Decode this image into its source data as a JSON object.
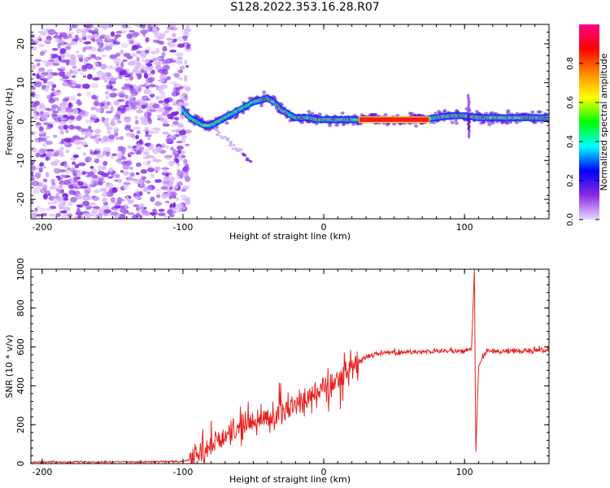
{
  "title": "S128.2022.353.16.28.R07",
  "chart_data": [
    {
      "type": "heatmap",
      "xlabel": "Height of straight line (km)",
      "ylabel": "Frequency (Hz)",
      "xlim": [
        -208,
        160
      ],
      "ylim": [
        -25,
        25
      ],
      "x_ticks": [
        -200,
        -100,
        0,
        100
      ],
      "y_ticks": [
        -20,
        -10,
        0,
        10,
        20
      ],
      "colorbar": {
        "label": "Normalized spectral amplitude",
        "range": [
          0,
          1
        ],
        "ticks": [
          0.0,
          0.2,
          0.4,
          0.6,
          0.8
        ],
        "tick_labels": [
          "0.0",
          "0.2",
          "0.4",
          "0.6",
          "0.8"
        ],
        "colormap": [
          "#e8d8ff",
          "#8a2be2",
          "#0000ff",
          "#00ffff",
          "#00ff00",
          "#ffff00",
          "#ff8800",
          "#ff0000",
          "#ff0088"
        ]
      },
      "noise_region_x": [
        -208,
        -100
      ],
      "ridge": {
        "x": [
          -100,
          -95,
          -90,
          -85,
          -80,
          -75,
          -70,
          -65,
          -60,
          -55,
          -50,
          -45,
          -40,
          -35,
          -30,
          -25,
          -20,
          -15,
          -10,
          -5,
          0,
          10,
          20,
          30,
          40,
          50,
          60,
          70,
          80,
          90,
          100,
          110,
          120,
          130,
          140,
          150,
          160
        ],
        "y": [
          3,
          1,
          0,
          -1,
          -1,
          0,
          1,
          2,
          3,
          4,
          5,
          5.5,
          6,
          5,
          3,
          2,
          1,
          1,
          1,
          0.5,
          0.5,
          0.5,
          0.5,
          0.5,
          0.5,
          0.5,
          0.5,
          0.5,
          1,
          1.5,
          1.5,
          1,
          1,
          1,
          1,
          1,
          1
        ],
        "peak_amplitude_x_range": [
          25,
          75
        ]
      }
    },
    {
      "type": "line",
      "xlabel": "Height of straight line (km)",
      "ylabel": "SNR (10 * v/v)",
      "xlim": [
        -208,
        160
      ],
      "ylim": [
        0,
        1000
      ],
      "x_ticks": [
        -200,
        -100,
        0,
        100
      ],
      "y_ticks": [
        0,
        200,
        400,
        600,
        800,
        1000
      ],
      "series_color": "#e8201e",
      "trend": {
        "x": [
          -208,
          -100,
          -90,
          -80,
          -70,
          -60,
          -50,
          -40,
          -30,
          -20,
          -10,
          0,
          10,
          20,
          30,
          40,
          60,
          80,
          100,
          105,
          107,
          108,
          110,
          115,
          130,
          160
        ],
        "y": [
          8,
          10,
          30,
          90,
          140,
          190,
          210,
          240,
          270,
          300,
          350,
          390,
          440,
          500,
          550,
          570,
          575,
          577,
          580,
          585,
          1000,
          50,
          500,
          575,
          580,
          585
        ]
      }
    }
  ]
}
